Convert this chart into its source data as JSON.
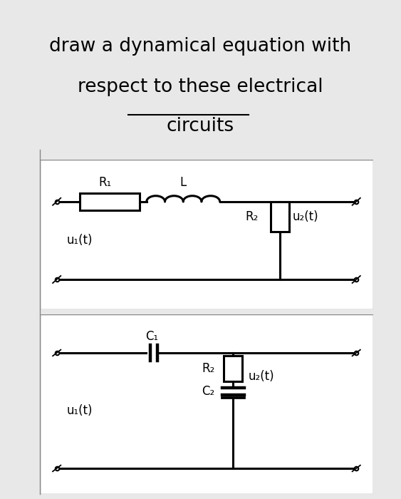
{
  "title_line1": "draw a dynamical equation with",
  "title_line2": "respect to these electrical",
  "title_line3": "circuits",
  "title_fontsize": 19,
  "bg_color": "#e8e8e8",
  "panel_bg": "#ffffff",
  "line_color": "#000000",
  "line_width": 2.2,
  "border_color": "#888888",
  "circuit1": {
    "label_R1": "R₁",
    "label_L": "L",
    "label_R2": "R₂",
    "label_u1": "u₁(t)",
    "label_u2": "u₂(t)"
  },
  "circuit2": {
    "label_C1": "C₁",
    "label_R2": "R₂",
    "label_C2": "C₂",
    "label_u1": "u₁(t)",
    "label_u2": "u₂(t)"
  }
}
